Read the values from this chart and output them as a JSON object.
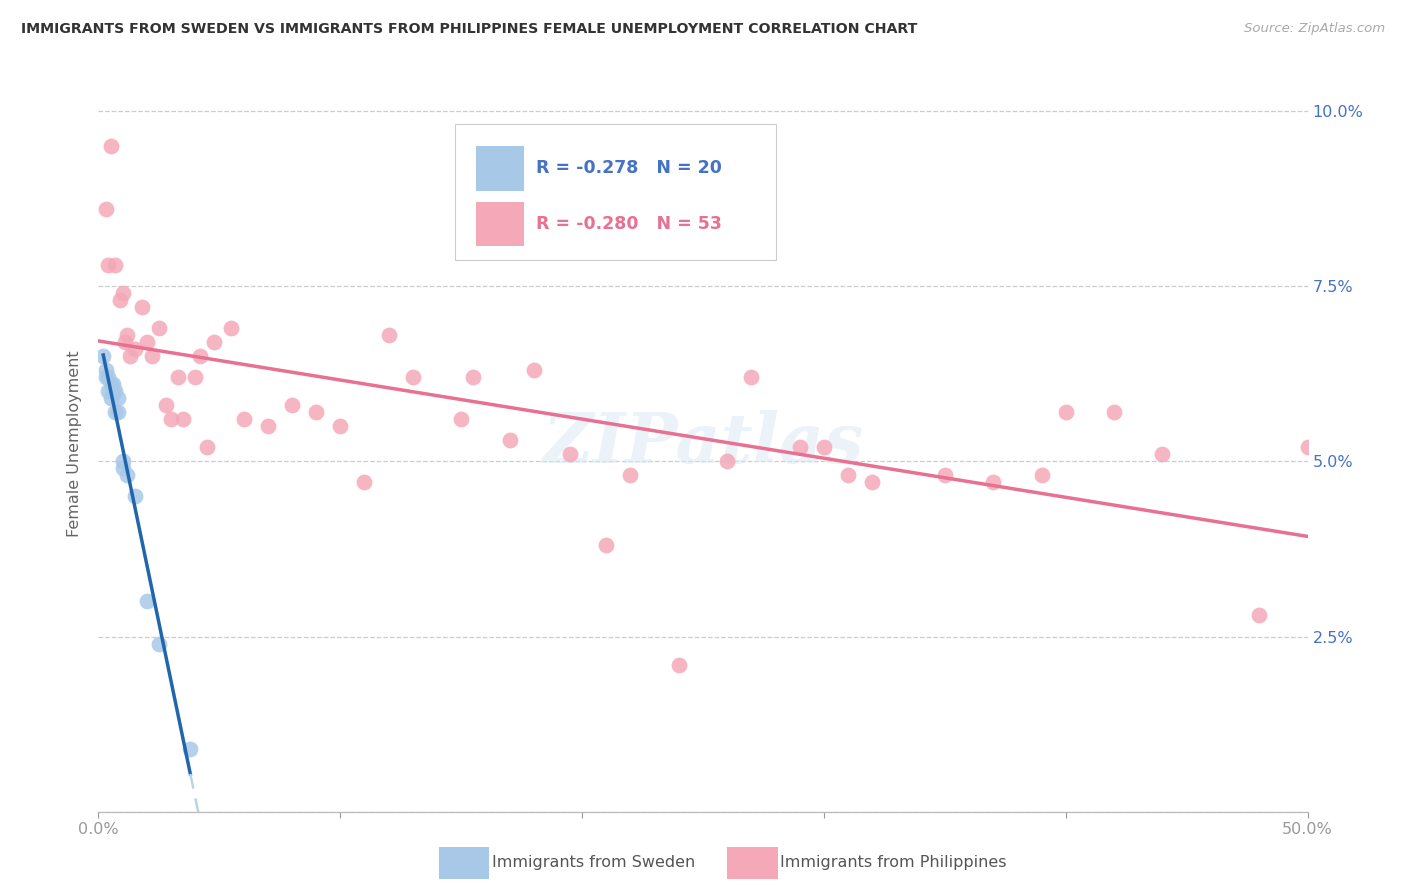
{
  "title": "IMMIGRANTS FROM SWEDEN VS IMMIGRANTS FROM PHILIPPINES FEMALE UNEMPLOYMENT CORRELATION CHART",
  "source": "Source: ZipAtlas.com",
  "ylabel": "Female Unemployment",
  "xmin": 0.0,
  "xmax": 0.5,
  "ymin": 0.0,
  "ymax": 0.105,
  "sweden_color": "#a8c8e8",
  "philippines_color": "#f4a8b8",
  "sweden_trend_color": "#2166ac",
  "philippines_trend_color": "#e87090",
  "sweden_trend_dashed_color": "#b8d4ec",
  "legend_r1": "R = -0.278",
  "legend_n1": "N = 20",
  "legend_r2": "R = -0.280",
  "legend_n2": "N = 53",
  "legend_label_bottom1": "Immigrants from Sweden",
  "legend_label_bottom2": "Immigrants from Philippines",
  "watermark": "ZIPatlas",
  "sweden_x": [
    0.002,
    0.003,
    0.003,
    0.004,
    0.004,
    0.005,
    0.005,
    0.006,
    0.006,
    0.007,
    0.007,
    0.008,
    0.008,
    0.01,
    0.01,
    0.012,
    0.015,
    0.02,
    0.025,
    0.038
  ],
  "sweden_y": [
    0.065,
    0.063,
    0.062,
    0.062,
    0.06,
    0.061,
    0.059,
    0.061,
    0.06,
    0.06,
    0.057,
    0.059,
    0.057,
    0.05,
    0.049,
    0.048,
    0.045,
    0.03,
    0.024,
    0.009
  ],
  "phil_x": [
    0.003,
    0.004,
    0.005,
    0.007,
    0.009,
    0.01,
    0.011,
    0.012,
    0.013,
    0.015,
    0.018,
    0.02,
    0.022,
    0.025,
    0.028,
    0.03,
    0.033,
    0.035,
    0.04,
    0.042,
    0.045,
    0.048,
    0.055,
    0.06,
    0.07,
    0.08,
    0.09,
    0.1,
    0.11,
    0.12,
    0.13,
    0.15,
    0.155,
    0.17,
    0.18,
    0.195,
    0.21,
    0.22,
    0.24,
    0.26,
    0.27,
    0.29,
    0.3,
    0.31,
    0.32,
    0.35,
    0.37,
    0.39,
    0.4,
    0.42,
    0.44,
    0.48,
    0.5
  ],
  "phil_y": [
    0.086,
    0.078,
    0.095,
    0.078,
    0.073,
    0.074,
    0.067,
    0.068,
    0.065,
    0.066,
    0.072,
    0.067,
    0.065,
    0.069,
    0.058,
    0.056,
    0.062,
    0.056,
    0.062,
    0.065,
    0.052,
    0.067,
    0.069,
    0.056,
    0.055,
    0.058,
    0.057,
    0.055,
    0.047,
    0.068,
    0.062,
    0.056,
    0.062,
    0.053,
    0.063,
    0.051,
    0.038,
    0.048,
    0.021,
    0.05,
    0.062,
    0.052,
    0.052,
    0.048,
    0.047,
    0.048,
    0.047,
    0.048,
    0.057,
    0.057,
    0.051,
    0.028,
    0.052
  ]
}
